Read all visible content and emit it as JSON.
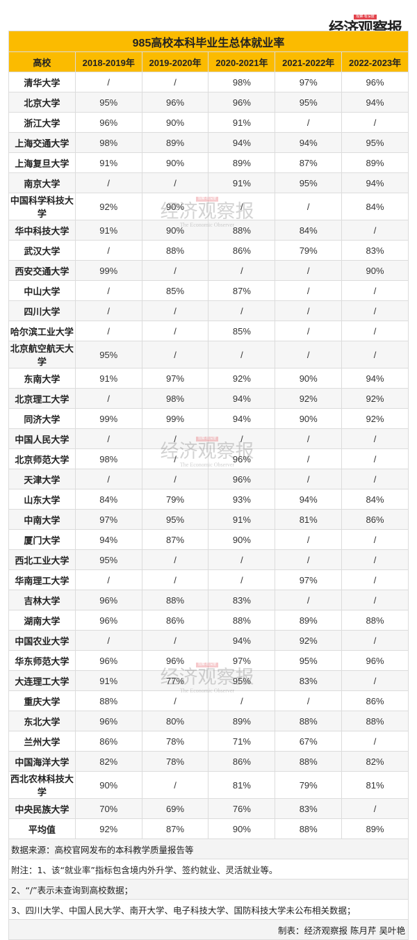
{
  "logo": {
    "tag": "观察·有深度",
    "name": "经济观察报",
    "english": "The Economic Observer"
  },
  "table": {
    "title": "985高校本科毕业生总体就业率",
    "headers": [
      "高校",
      "2018-2019年",
      "2019-2020年",
      "2020-2021年",
      "2021-2022年",
      "2022-2023年"
    ],
    "rows": [
      [
        "清华大学",
        "/",
        "/",
        "98%",
        "97%",
        "96%"
      ],
      [
        "北京大学",
        "95%",
        "96%",
        "96%",
        "95%",
        "94%"
      ],
      [
        "浙江大学",
        "96%",
        "90%",
        "91%",
        "/",
        "/"
      ],
      [
        "上海交通大学",
        "98%",
        "89%",
        "94%",
        "94%",
        "95%"
      ],
      [
        "上海复旦大学",
        "91%",
        "90%",
        "89%",
        "87%",
        "89%"
      ],
      [
        "南京大学",
        "/",
        "/",
        "91%",
        "95%",
        "94%"
      ],
      [
        "中国科学科技大学",
        "92%",
        "90%",
        "/",
        "/",
        "84%"
      ],
      [
        "华中科技大学",
        "91%",
        "90%",
        "88%",
        "84%",
        "/"
      ],
      [
        "武汉大学",
        "/",
        "88%",
        "86%",
        "79%",
        "83%"
      ],
      [
        "西安交通大学",
        "99%",
        "/",
        "/",
        "/",
        "90%"
      ],
      [
        "中山大学",
        "/",
        "85%",
        "87%",
        "/",
        "/"
      ],
      [
        "四川大学",
        "/",
        "/",
        "/",
        "/",
        "/"
      ],
      [
        "哈尔滨工业大学",
        "/",
        "/",
        "85%",
        "/",
        "/"
      ],
      [
        "北京航空航天大学",
        "95%",
        "/",
        "/",
        "/",
        "/"
      ],
      [
        "东南大学",
        "91%",
        "97%",
        "92%",
        "90%",
        "94%"
      ],
      [
        "北京理工大学",
        "/",
        "98%",
        "94%",
        "92%",
        "92%"
      ],
      [
        "同济大学",
        "99%",
        "99%",
        "94%",
        "90%",
        "92%"
      ],
      [
        "中国人民大学",
        "/",
        "/",
        "/",
        "/",
        "/"
      ],
      [
        "北京师范大学",
        "98%",
        "/",
        "96%",
        "/",
        "/"
      ],
      [
        "天津大学",
        "/",
        "/",
        "96%",
        "/",
        "/"
      ],
      [
        "山东大学",
        "84%",
        "79%",
        "93%",
        "94%",
        "84%"
      ],
      [
        "中南大学",
        "97%",
        "95%",
        "91%",
        "81%",
        "86%"
      ],
      [
        "厦门大学",
        "94%",
        "87%",
        "90%",
        "/",
        "/"
      ],
      [
        "西北工业大学",
        "95%",
        "/",
        "/",
        "/",
        "/"
      ],
      [
        "华南理工大学",
        "/",
        "/",
        "/",
        "97%",
        "/"
      ],
      [
        "吉林大学",
        "96%",
        "88%",
        "83%",
        "/",
        "/"
      ],
      [
        "湖南大学",
        "96%",
        "86%",
        "88%",
        "89%",
        "88%"
      ],
      [
        "中国农业大学",
        "/",
        "/",
        "94%",
        "92%",
        "/"
      ],
      [
        "华东师范大学",
        "96%",
        "96%",
        "97%",
        "95%",
        "96%"
      ],
      [
        "大连理工大学",
        "91%",
        "77%",
        "95%",
        "83%",
        "/"
      ],
      [
        "重庆大学",
        "88%",
        "/",
        "/",
        "/",
        "86%"
      ],
      [
        "东北大学",
        "96%",
        "80%",
        "89%",
        "88%",
        "88%"
      ],
      [
        "兰州大学",
        "86%",
        "78%",
        "71%",
        "67%",
        "/"
      ],
      [
        "中国海洋大学",
        "82%",
        "78%",
        "86%",
        "88%",
        "82%"
      ],
      [
        "西北农林科技大学",
        "90%",
        "/",
        "81%",
        "79%",
        "81%"
      ],
      [
        "中央民族大学",
        "70%",
        "69%",
        "76%",
        "83%",
        "/"
      ],
      [
        "平均值",
        "92%",
        "87%",
        "90%",
        "88%",
        "89%"
      ]
    ]
  },
  "notes": [
    "数据来源：高校官网发布的本科教学质量报告等",
    "附注：1、该“就业率”指标包含境内外升学、签约就业、灵活就业等。",
    "2、“/”表示未查询到高校数据；",
    "3、四川大学、中国人民大学、南开大学、电子科技大学、国防科技大学未公布相关数据；",
    "制表：经济观察报 陈月芹 吴叶艳"
  ],
  "colors": {
    "header": "#fbbb00",
    "watermark_tag": "#e2424b"
  }
}
